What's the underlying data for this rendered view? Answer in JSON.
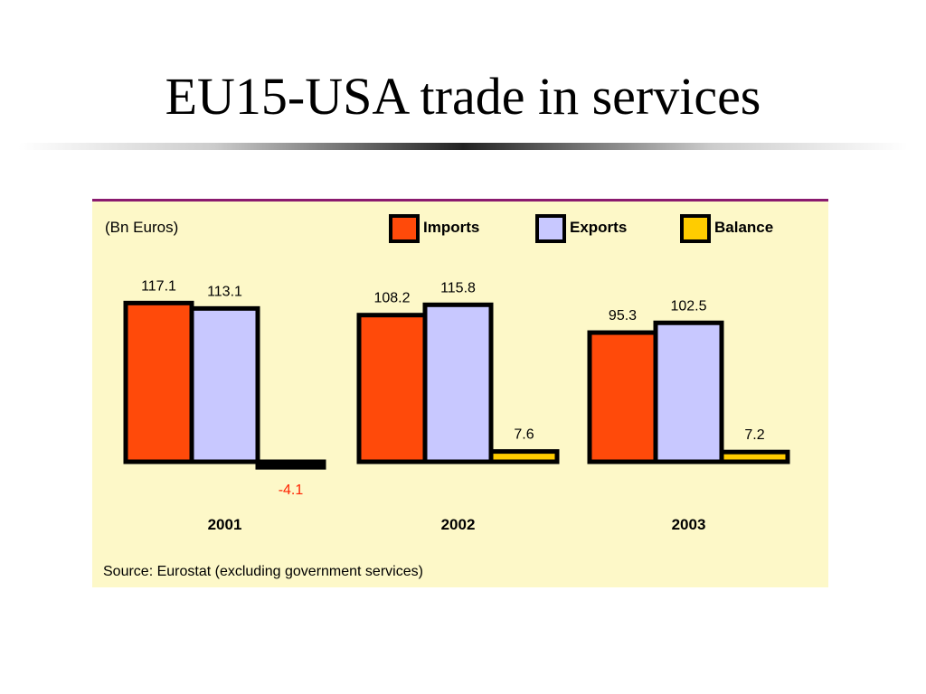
{
  "slide": {
    "title": "EU15-USA trade in services"
  },
  "chart_data": {
    "type": "bar",
    "unit_label": "(Bn Euros)",
    "categories": [
      "2001",
      "2002",
      "2003"
    ],
    "series": [
      {
        "name": "Imports",
        "color": "#ff4a0a",
        "values": [
          117.1,
          108.2,
          95.3
        ]
      },
      {
        "name": "Exports",
        "color": "#c8c8ff",
        "values": [
          113.1,
          115.8,
          102.5
        ]
      },
      {
        "name": "Balance",
        "color": "#ffcc00",
        "values": [
          -4.1,
          7.6,
          7.2
        ]
      }
    ],
    "data_labels": [
      [
        "117.1",
        "113.1",
        "-4.1"
      ],
      [
        "108.2",
        "115.8",
        "7.6"
      ],
      [
        "95.3",
        "102.5",
        "7.2"
      ]
    ],
    "negative_label_color": "#ff2200",
    "legend_placement": "top-right",
    "grid": false,
    "source": "Source: Eurostat (excluding government services)"
  }
}
